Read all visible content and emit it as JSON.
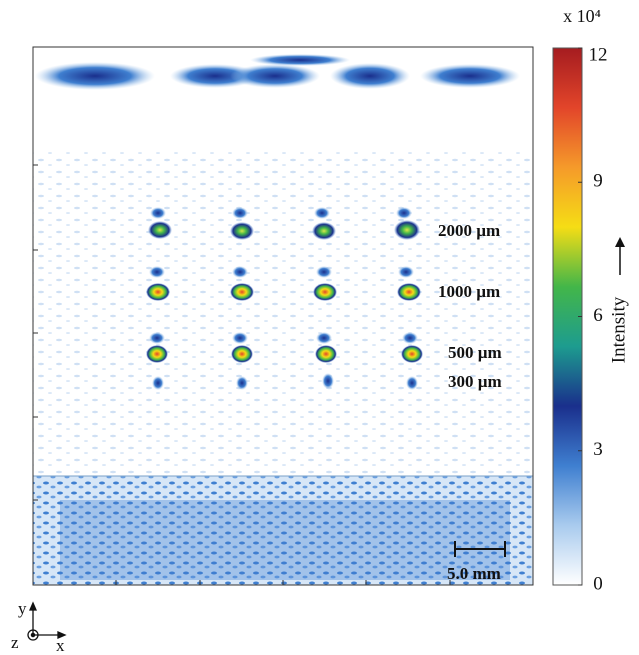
{
  "chart_data": {
    "type": "heatmap",
    "colorbar_label": "Intensity",
    "colorbar_multiplier": "x 10⁴",
    "clim": [
      0,
      12
    ],
    "cticks": [
      0,
      3,
      6,
      9,
      12
    ],
    "colormap": [
      "#ffffff",
      "#a9cbee",
      "#3f7fd0",
      "#1a2f8c",
      "#1d9c8f",
      "#43b649",
      "#f5dd15",
      "#f59a2a",
      "#e2452a",
      "#a51c20"
    ],
    "annotations": [
      "2000 µm",
      "1000 µm",
      "500 µm",
      "300 µm"
    ],
    "scale_bar": "5.0 mm",
    "axes_glyph": {
      "y": "y",
      "z": "z",
      "x": "x"
    }
  }
}
